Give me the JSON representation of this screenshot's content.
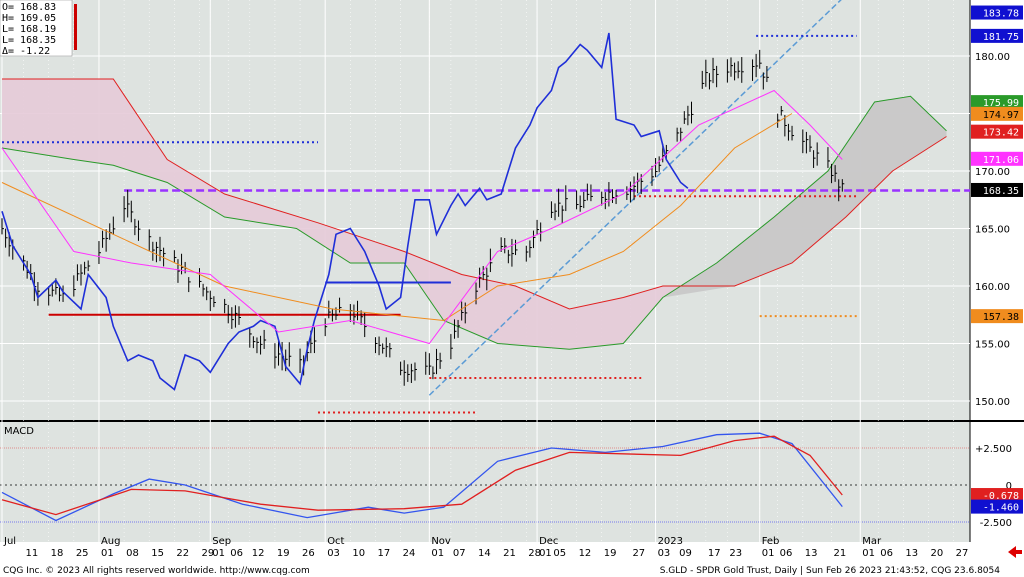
{
  "ohlc": {
    "open": "O= 168.83",
    "high": "H= 169.05",
    "low": "L= 168.19",
    "last": "L= 168.35",
    "change": "Δ=  -1.22"
  },
  "price_pane": {
    "y_ticks": [
      "180.00",
      "175.00",
      "170.00",
      "165.00",
      "160.00",
      "155.00",
      "150.00"
    ],
    "tags": [
      {
        "text": "183.78",
        "value": 183.78,
        "bg": "#1010d0",
        "fg": "#ffffff"
      },
      {
        "text": "181.75",
        "value": 181.75,
        "bg": "#1010d0",
        "fg": "#ffffff"
      },
      {
        "text": "175.99",
        "value": 175.99,
        "bg": "#2a9a2a",
        "fg": "#ffffff"
      },
      {
        "text": "174.97",
        "value": 174.97,
        "bg": "#f08c1e",
        "fg": "#000000"
      },
      {
        "text": "173.42",
        "value": 173.42,
        "bg": "#e02020",
        "fg": "#ffffff"
      },
      {
        "text": "171.06",
        "value": 171.06,
        "bg": "#ff33ff",
        "fg": "#ffffff"
      },
      {
        "text": "168.35",
        "value": 168.35,
        "bg": "#000000",
        "fg": "#ffffff"
      },
      {
        "text": "157.38",
        "value": 157.38,
        "bg": "#f08c1e",
        "fg": "#000000"
      }
    ]
  },
  "macd_pane": {
    "title": "MACD",
    "y_ticks": [
      "+2.500",
      "0",
      "-2.500"
    ],
    "tags": [
      {
        "text": "-0.678",
        "value": -0.678,
        "bg": "#e02020",
        "fg": "#ffffff"
      },
      {
        "text": "-1.460",
        "value": -1.46,
        "bg": "#1010d0",
        "fg": "#ffffff"
      }
    ]
  },
  "x_axis": {
    "months": [
      "Jul",
      "Aug",
      "Sep",
      "Oct",
      "Nov",
      "Dec",
      "2023",
      "Feb",
      "Mar"
    ],
    "days": [
      "11",
      "18",
      "25",
      "01",
      "08",
      "15",
      "22",
      "29",
      "01",
      "06",
      "12",
      "19",
      "26",
      "03",
      "10",
      "17",
      "24",
      "01",
      "07",
      "14",
      "21",
      "28",
      "01",
      "05",
      "12",
      "19",
      "27",
      "03",
      "09",
      "17",
      "23",
      "01",
      "06",
      "13",
      "21",
      "01",
      "06",
      "13",
      "20",
      "27"
    ]
  },
  "footer": {
    "left": "CQG Inc. © 2023 All rights reserved worldwide. http://www.cqg.com",
    "right": "S.GLD - SPDR Gold Trust, Daily | Sun Feb 26 2023 21:43:52, CQG 23.6.8054"
  },
  "colors": {
    "background": "#dee3e0",
    "price_line": "#1f2fd8",
    "kijun": "#f08c1e",
    "tenkan": "#ff33ff",
    "span_a": "#2a9a2a",
    "span_b": "#e02020",
    "cloud_bull": "#c8c8c8",
    "cloud_bear": "#e6cad8",
    "purple_level": "#9933ff",
    "trendline": "#5b9bd5",
    "macd_line": "#3355ee",
    "signal_line": "#e02020"
  },
  "chart_data": [
    {
      "type": "line",
      "title": "S.GLD - SPDR Gold Trust, Daily",
      "xlabel": "",
      "ylabel": "",
      "x_range": [
        "2022-07-05",
        "2023-03-31"
      ],
      "ylim": [
        147.5,
        185
      ],
      "grid": true,
      "series": [
        {
          "values_note": "",
          "values": [
            [
              "2022-07-05",
              166.5
            ],
            [
              "2022-07-08",
              163.5
            ],
            [
              "2022-07-13",
              161
            ],
            [
              "2022-07-15",
              159
            ],
            [
              "2022-07-20",
              160.5
            ],
            [
              "2022-07-22",
              159.5
            ],
            [
              "2022-07-27",
              158
            ],
            [
              "2022-07-29",
              161
            ],
            [
              "2022-08-03",
              159
            ],
            [
              "2022-08-05",
              156.5
            ],
            [
              "2022-08-09",
              153.5
            ],
            [
              "2022-08-12",
              154
            ],
            [
              "2022-08-16",
              153.5
            ],
            [
              "2022-08-18",
              152
            ],
            [
              "2022-08-22",
              151
            ],
            [
              "2022-08-25",
              154
            ],
            [
              "2022-08-29",
              153.5
            ],
            [
              "2022-09-01",
              152.5
            ],
            [
              "2022-09-06",
              155
            ],
            [
              "2022-09-09",
              156
            ],
            [
              "2022-09-13",
              156.5
            ],
            [
              "2022-09-15",
              157
            ],
            [
              "2022-09-19",
              156.5
            ],
            [
              "2022-09-22",
              153
            ],
            [
              "2022-09-26",
              151.5
            ],
            [
              "2022-09-28",
              154.5
            ],
            [
              "2022-09-30",
              157
            ],
            [
              "2022-10-04",
              161
            ],
            [
              "2022-10-06",
              164.5
            ],
            [
              "2022-10-10",
              165
            ],
            [
              "2022-10-12",
              164
            ],
            [
              "2022-10-14",
              163
            ],
            [
              "2022-10-18",
              160
            ],
            [
              "2022-10-20",
              158
            ],
            [
              "2022-10-24",
              159
            ],
            [
              "2022-10-26",
              163.5
            ],
            [
              "2022-10-28",
              167.5
            ],
            [
              "2022-11-01",
              167.5
            ],
            [
              "2022-11-03",
              164.5
            ],
            [
              "2022-11-07",
              167
            ],
            [
              "2022-11-09",
              168
            ],
            [
              "2022-11-11",
              167
            ],
            [
              "2022-11-15",
              168.5
            ],
            [
              "2022-11-17",
              167.5
            ],
            [
              "2022-11-21",
              168
            ],
            [
              "2022-11-23",
              170
            ],
            [
              "2022-11-25",
              172
            ],
            [
              "2022-11-29",
              174
            ],
            [
              "2022-12-01",
              175.5
            ],
            [
              "2022-12-05",
              177
            ],
            [
              "2022-12-07",
              179
            ],
            [
              "2022-12-09",
              179.5
            ],
            [
              "2022-12-13",
              181
            ],
            [
              "2022-12-15",
              180.5
            ],
            [
              "2022-12-19",
              179
            ],
            [
              "2022-12-21",
              182
            ],
            [
              "2022-12-23",
              174.5
            ],
            [
              "2022-12-28",
              174
            ],
            [
              "2022-12-30",
              173
            ],
            [
              "2023-01-04",
              173.5
            ],
            [
              "2023-01-06",
              171
            ],
            [
              "2023-01-10",
              169
            ],
            [
              "2023-01-12",
              168.5
            ]
          ]
        },
        {
          "values": [
            [
              "2022-07-05",
              169
            ],
            [
              "2022-08-05",
              164.5
            ],
            [
              "2022-09-05",
              160
            ],
            [
              "2022-10-05",
              158
            ],
            [
              "2022-11-05",
              157
            ],
            [
              "2022-11-20",
              160
            ],
            [
              "2022-12-10",
              161
            ],
            [
              "2022-12-25",
              163
            ],
            [
              "2023-01-10",
              167
            ],
            [
              "2023-01-25",
              172
            ],
            [
              "2023-02-10",
              175
            ]
          ]
        },
        {
          "values": [
            [
              "2022-07-05",
              172
            ],
            [
              "2022-07-25",
              163
            ],
            [
              "2022-08-10",
              162
            ],
            [
              "2022-09-01",
              161
            ],
            [
              "2022-09-20",
              156
            ],
            [
              "2022-10-10",
              157
            ],
            [
              "2022-11-01",
              155
            ],
            [
              "2022-11-20",
              163
            ],
            [
              "2022-12-05",
              165
            ],
            [
              "2022-12-25",
              168
            ],
            [
              "2023-01-15",
              174
            ],
            [
              "2023-02-05",
              177
            ],
            [
              "2023-02-15",
              174
            ],
            [
              "2023-02-24",
              171
            ]
          ]
        }
      ]
    },
    {
      "type": "line",
      "title": "MACD",
      "xlabel": "",
      "ylabel": "",
      "ylim": [
        -3.5,
        4.5
      ],
      "y_ticks": [
        2.5,
        0,
        -2.5
      ],
      "series": [
        {
          "values": [
            [
              "2022-07-05",
              -0.5
            ],
            [
              "2022-07-20",
              -2.4
            ],
            [
              "2022-08-05",
              -0.6
            ],
            [
              "2022-08-15",
              0.4
            ],
            [
              "2022-08-25",
              0.0
            ],
            [
              "2022-09-10",
              -1.3
            ],
            [
              "2022-09-28",
              -2.2
            ],
            [
              "2022-10-15",
              -1.5
            ],
            [
              "2022-10-25",
              -1.9
            ],
            [
              "2022-11-05",
              -1.5
            ],
            [
              "2022-11-20",
              1.6
            ],
            [
              "2022-12-05",
              2.5
            ],
            [
              "2022-12-20",
              2.2
            ],
            [
              "2023-01-05",
              2.6
            ],
            [
              "2023-01-20",
              3.4
            ],
            [
              "2023-02-01",
              3.5
            ],
            [
              "2023-02-10",
              2.8
            ],
            [
              "2023-02-24",
              -1.46
            ]
          ]
        },
        {
          "values": [
            [
              "2022-07-05",
              -1.0
            ],
            [
              "2022-07-20",
              -2.0
            ],
            [
              "2022-08-10",
              -0.3
            ],
            [
              "2022-08-25",
              -0.4
            ],
            [
              "2022-09-15",
              -1.3
            ],
            [
              "2022-10-01",
              -1.7
            ],
            [
              "2022-10-25",
              -1.6
            ],
            [
              "2022-11-10",
              -1.3
            ],
            [
              "2022-11-25",
              1.0
            ],
            [
              "2022-12-10",
              2.2
            ],
            [
              "2023-01-10",
              2.0
            ],
            [
              "2023-01-25",
              3.0
            ],
            [
              "2023-02-05",
              3.3
            ],
            [
              "2023-02-15",
              2.0
            ],
            [
              "2023-02-24",
              -0.678
            ]
          ]
        }
      ]
    }
  ]
}
